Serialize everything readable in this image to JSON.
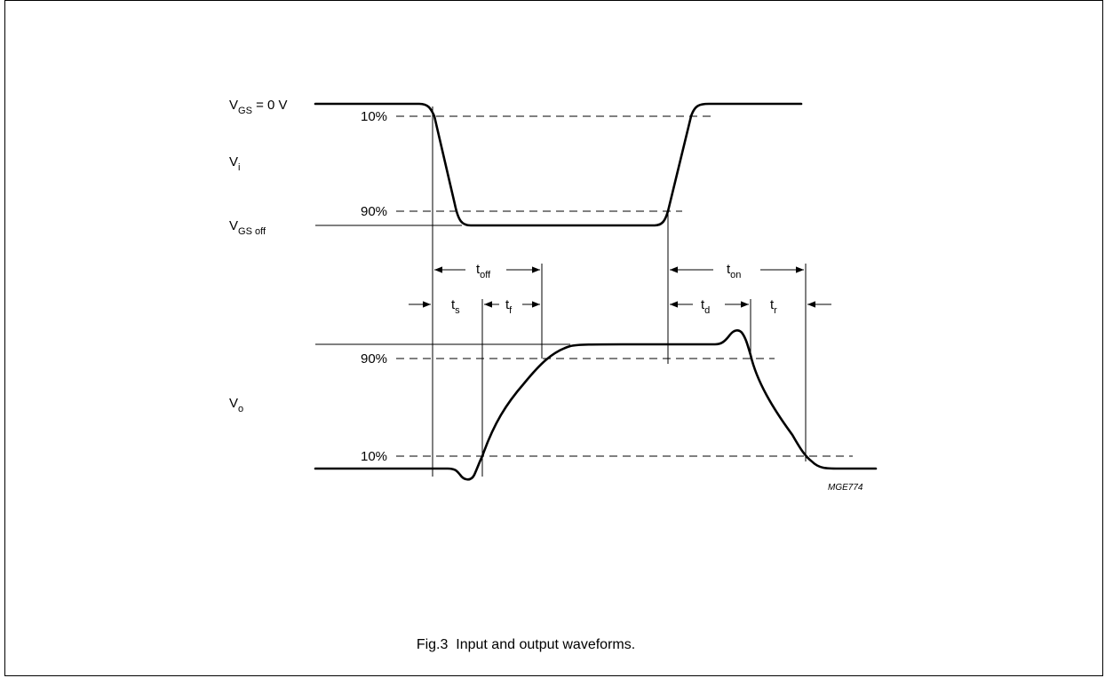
{
  "caption": "Fig.3  Input and output waveforms.",
  "figure_code": "MGE774",
  "input": {
    "v_gs_zero": {
      "main": "V",
      "sub": "GS",
      "suffix": " = 0 V"
    },
    "v_i": {
      "main": "V",
      "sub": "i"
    },
    "v_gs_off": {
      "main": "V",
      "sub": "GS off"
    },
    "level_10": "10%",
    "level_90": "90%"
  },
  "output": {
    "v_o": {
      "main": "V",
      "sub": "o"
    },
    "level_90": "90%",
    "level_10": "10%"
  },
  "timing": {
    "t_off": {
      "main": "t",
      "sub": "off"
    },
    "t_on": {
      "main": "t",
      "sub": "on"
    },
    "t_s": {
      "main": "t",
      "sub": "s"
    },
    "t_f": {
      "main": "t",
      "sub": "f"
    },
    "t_d": {
      "main": "t",
      "sub": "d"
    },
    "t_r": {
      "main": "t",
      "sub": "r"
    }
  }
}
